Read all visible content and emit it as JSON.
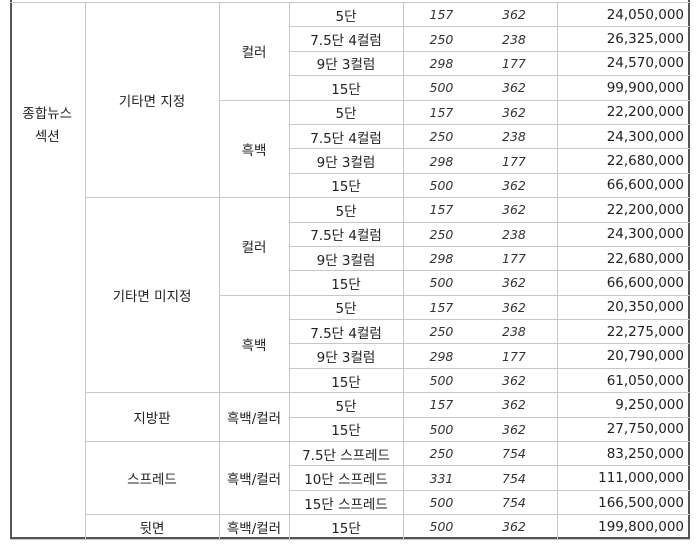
{
  "section": {
    "lines": [
      "종합뉴스",
      "섹션"
    ]
  },
  "groups": [
    {
      "name": "기타면 지정",
      "subgroups": [
        {
          "type": "컬러",
          "rows": [
            {
              "size": "5단",
              "width": "157",
              "height": "362",
              "price": "24,050,000"
            },
            {
              "size": "7.5단 4컬럼",
              "width": "250",
              "height": "238",
              "price": "26,325,000"
            },
            {
              "size": "9단 3컬럼",
              "width": "298",
              "height": "177",
              "price": "24,570,000"
            },
            {
              "size": "15단",
              "width": "500",
              "height": "362",
              "price": "99,900,000"
            }
          ]
        },
        {
          "type": "흑백",
          "rows": [
            {
              "size": "5단",
              "width": "157",
              "height": "362",
              "price": "22,200,000"
            },
            {
              "size": "7.5단 4컬럼",
              "width": "250",
              "height": "238",
              "price": "24,300,000"
            },
            {
              "size": "9단 3컬럼",
              "width": "298",
              "height": "177",
              "price": "22,680,000"
            },
            {
              "size": "15단",
              "width": "500",
              "height": "362",
              "price": "66,600,000"
            }
          ]
        }
      ]
    },
    {
      "name": "기타면 미지정",
      "subgroups": [
        {
          "type": "컬러",
          "rows": [
            {
              "size": "5단",
              "width": "157",
              "height": "362",
              "price": "22,200,000"
            },
            {
              "size": "7.5단 4컬럼",
              "width": "250",
              "height": "238",
              "price": "24,300,000"
            },
            {
              "size": "9단 3컬럼",
              "width": "298",
              "height": "177",
              "price": "22,680,000"
            },
            {
              "size": "15단",
              "width": "500",
              "height": "362",
              "price": "66,600,000"
            }
          ]
        },
        {
          "type": "흑백",
          "rows": [
            {
              "size": "5단",
              "width": "157",
              "height": "362",
              "price": "20,350,000"
            },
            {
              "size": "7.5단 4컬럼",
              "width": "250",
              "height": "238",
              "price": "22,275,000"
            },
            {
              "size": "9단 3컬럼",
              "width": "298",
              "height": "177",
              "price": "20,790,000"
            },
            {
              "size": "15단",
              "width": "500",
              "height": "362",
              "price": "61,050,000"
            }
          ]
        }
      ]
    },
    {
      "name": "지방판",
      "subgroups": [
        {
          "type": "흑백/컬러",
          "rows": [
            {
              "size": "5단",
              "width": "157",
              "height": "362",
              "price": "9,250,000"
            },
            {
              "size": "15단",
              "width": "500",
              "height": "362",
              "price": "27,750,000"
            }
          ]
        }
      ]
    },
    {
      "name": "스프레드",
      "subgroups": [
        {
          "type": "흑백/컬러",
          "rows": [
            {
              "size": "7.5단 스프레드",
              "width": "250",
              "height": "754",
              "price": "83,250,000"
            },
            {
              "size": "10단 스프레드",
              "width": "331",
              "height": "754",
              "price": "111,000,000"
            },
            {
              "size": "15단 스프레드",
              "width": "500",
              "height": "754",
              "price": "166,500,000"
            }
          ]
        }
      ]
    },
    {
      "name": "뒷면",
      "subgroups": [
        {
          "type": "흑백/컬러",
          "rows": [
            {
              "size": "15단",
              "width": "500",
              "height": "362",
              "price": "199,800,000"
            }
          ]
        }
      ]
    }
  ]
}
